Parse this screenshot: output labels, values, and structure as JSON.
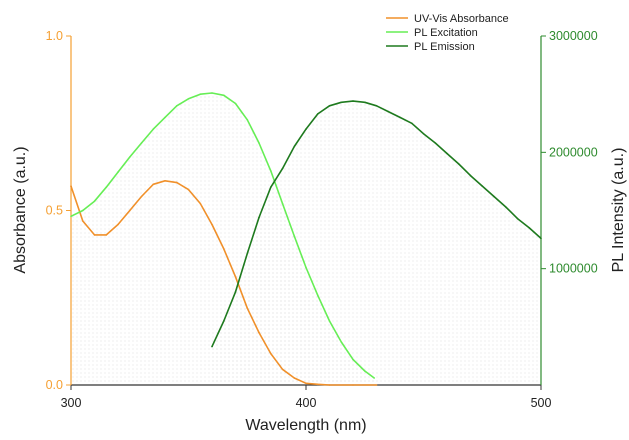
{
  "chart_data": {
    "type": "line",
    "title": "",
    "xlabel": "Wavelength (nm)",
    "ylabel_left": "Absorbance (a.u.)",
    "ylabel_right": "PL Intensity (a.u.)",
    "xlim": [
      300,
      500
    ],
    "ylim_left": [
      0,
      1.0
    ],
    "ylim_right": [
      0,
      3000000
    ],
    "x_ticks": [
      300,
      400,
      500
    ],
    "x_tick_labels": [
      "300",
      "400",
      "500"
    ],
    "y_left_ticks": [
      0.0,
      0.5,
      1.0
    ],
    "y_left_tick_labels": [
      "0.0",
      "0.5",
      "1.0"
    ],
    "y_right_ticks": [
      1000000,
      2000000,
      3000000
    ],
    "y_right_tick_labels": [
      "1000000",
      "2000000",
      "3000000"
    ],
    "grid": false,
    "legend_position": "top-right",
    "colors": {
      "left_axis": "#f5a033",
      "right_axis": "#2e8b2e",
      "uvvis": "#f0902a",
      "excitation": "#66ee55",
      "emission": "#1e7a1e"
    },
    "series": [
      {
        "name": "UV-Vis Absorbance",
        "axis": "left",
        "x": [
          300,
          305,
          310,
          315,
          320,
          325,
          330,
          335,
          340,
          345,
          350,
          355,
          360,
          365,
          370,
          375,
          380,
          385,
          390,
          395,
          400,
          405,
          410,
          420,
          430
        ],
        "y": [
          0.57,
          0.47,
          0.43,
          0.43,
          0.46,
          0.5,
          0.54,
          0.575,
          0.585,
          0.58,
          0.56,
          0.52,
          0.46,
          0.39,
          0.31,
          0.22,
          0.15,
          0.09,
          0.045,
          0.02,
          0.005,
          0.002,
          0.0,
          0.0,
          0.0
        ]
      },
      {
        "name": "PL Excitation",
        "axis": "right",
        "x": [
          300,
          305,
          310,
          315,
          320,
          325,
          330,
          335,
          340,
          345,
          350,
          355,
          360,
          365,
          370,
          375,
          380,
          385,
          390,
          395,
          400,
          405,
          410,
          415,
          420,
          425,
          429
        ],
        "y": [
          1450000,
          1500000,
          1580000,
          1700000,
          1830000,
          1960000,
          2080000,
          2200000,
          2300000,
          2400000,
          2460000,
          2500000,
          2510000,
          2490000,
          2420000,
          2280000,
          2080000,
          1840000,
          1560000,
          1280000,
          1010000,
          770000,
          550000,
          370000,
          220000,
          120000,
          60000
        ]
      },
      {
        "name": "PL Emission",
        "axis": "right",
        "x": [
          360,
          365,
          370,
          375,
          380,
          385,
          390,
          395,
          400,
          405,
          410,
          415,
          420,
          425,
          430,
          435,
          440,
          445,
          450,
          455,
          460,
          465,
          470,
          475,
          480,
          485,
          490,
          495,
          500
        ],
        "y": [
          330000,
          550000,
          800000,
          1130000,
          1440000,
          1700000,
          1860000,
          2050000,
          2200000,
          2330000,
          2400000,
          2430000,
          2440000,
          2430000,
          2400000,
          2350000,
          2300000,
          2250000,
          2160000,
          2080000,
          1990000,
          1900000,
          1800000,
          1710000,
          1620000,
          1530000,
          1430000,
          1350000,
          1260000
        ]
      }
    ]
  }
}
